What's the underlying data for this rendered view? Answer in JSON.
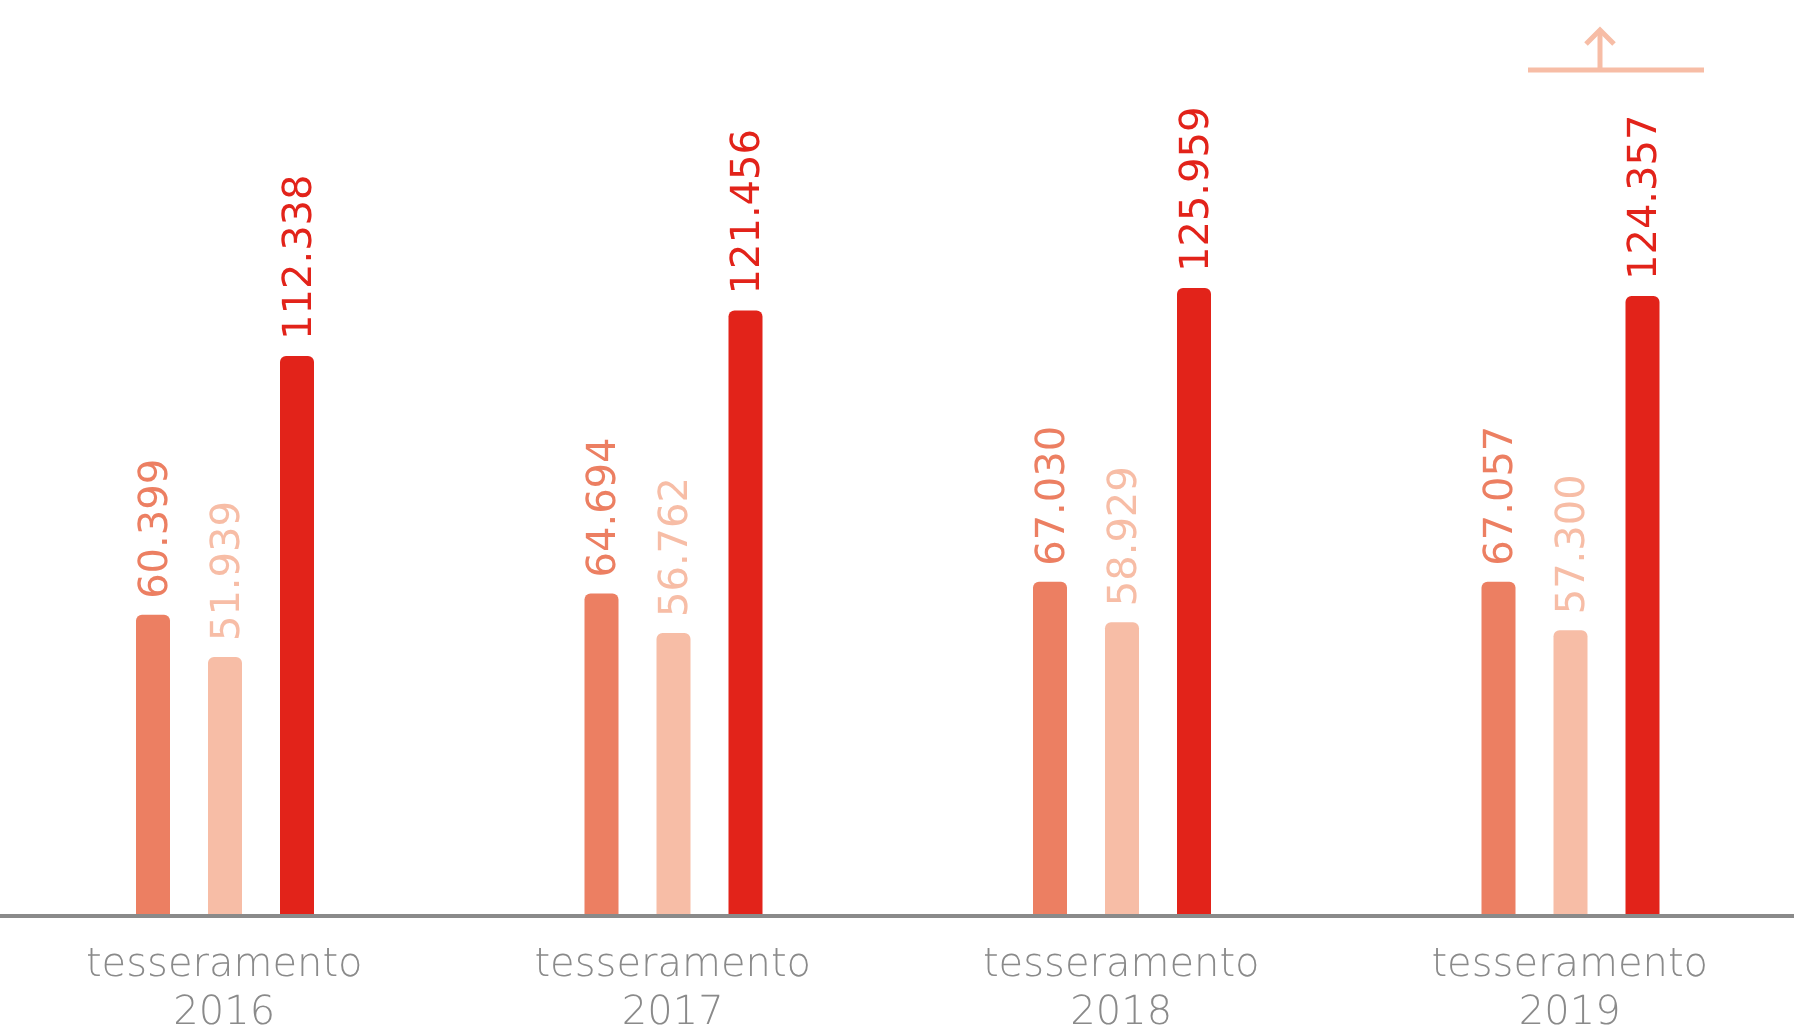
{
  "chart_data": {
    "type": "bar",
    "categories": [
      "tesseramento 2016",
      "tesseramento 2017",
      "tesseramento 2018",
      "tesseramento 2019"
    ],
    "series": [
      {
        "color": "#ec7f62",
        "values": [
          60399,
          64694,
          67030,
          67057
        ],
        "value_labels": [
          "60.399",
          "64.694",
          "67.030",
          "67.057"
        ]
      },
      {
        "color": "#f7bda6",
        "values": [
          51939,
          56762,
          58929,
          57300
        ],
        "value_labels": [
          "51.939",
          "56.762",
          "58.929",
          "57.300"
        ]
      },
      {
        "color": "#e2231a",
        "values": [
          112338,
          121456,
          125959,
          124357
        ],
        "value_labels": [
          "112.338",
          "121.456",
          "125.959",
          "124.357"
        ]
      }
    ],
    "grid": false,
    "legend": false
  }
}
